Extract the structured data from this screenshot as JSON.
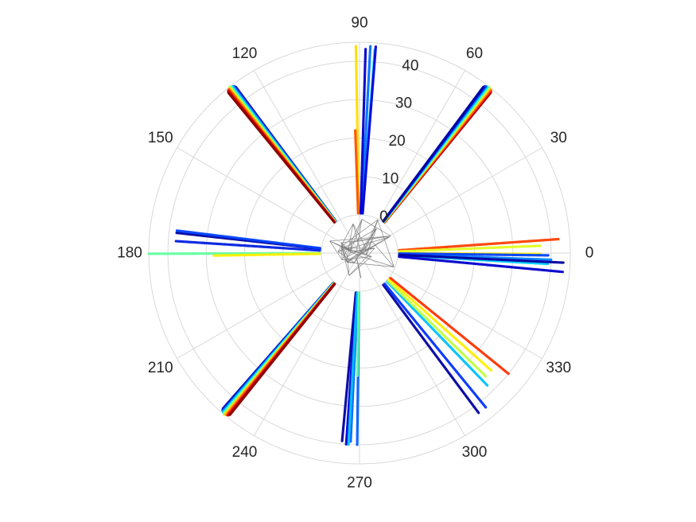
{
  "chart_data": {
    "type": "polar-scatter",
    "title": "",
    "theta_unit": "degrees",
    "theta_ticks": [
      "0",
      "30",
      "60",
      "90",
      "120",
      "150",
      "180",
      "210",
      "240",
      "270",
      "300",
      "330"
    ],
    "r_ticks": [
      "0",
      "10",
      "20",
      "30",
      "40"
    ],
    "r_lim": [
      -10,
      45
    ],
    "grid": true,
    "colormap": "jet",
    "core_network": {
      "color": "#7a7a7a",
      "r_range": [
        -10,
        0
      ]
    },
    "rays": [
      {
        "theta": 91,
        "r_start": 0,
        "r_end": 44,
        "colors": [
          "#ffdd00"
        ]
      },
      {
        "theta": 87,
        "r_start": 0,
        "r_end": 44,
        "colors": [
          "#00e0ff",
          "#0070ff",
          "#0000cc"
        ]
      },
      {
        "theta": 85.5,
        "r_start": 0,
        "r_end": 44,
        "colors": [
          "#0000dd"
        ]
      },
      {
        "theta": 92,
        "r_start": 0,
        "r_end": 22,
        "colors": [
          "#ff5000"
        ]
      },
      {
        "theta": 52,
        "r_start": 0,
        "r_end": 45,
        "colors": [
          "#8b0000",
          "#cc0000",
          "#ff2000",
          "#ff6000",
          "#ffa000",
          "#ffe000",
          "#c0ff40",
          "#60ffa0",
          "#00ffff",
          "#00b0ff",
          "#0060ff",
          "#0020e0",
          "#0000a0"
        ]
      },
      {
        "theta": 128,
        "r_start": 0,
        "r_end": 45,
        "colors": [
          "#0000a0",
          "#0020e0",
          "#0060ff",
          "#00b0ff",
          "#00ffff",
          "#60ffa0",
          "#c0ff40",
          "#ffe000",
          "#ffa000",
          "#ff6000",
          "#ff2000",
          "#cc0000",
          "#8b0000"
        ]
      },
      {
        "theta": 230,
        "r_start": 0,
        "r_end": 45,
        "colors": [
          "#0000a0",
          "#0020e0",
          "#0060ff",
          "#00b0ff",
          "#00ffff",
          "#60ffa0",
          "#c0ff40",
          "#ffe000",
          "#ffa000",
          "#ff6000",
          "#ff2000",
          "#cc0000",
          "#8b0000"
        ]
      },
      {
        "theta": 4,
        "r_start": 0,
        "r_end": 42,
        "colors": [
          "#ff4000"
        ]
      },
      {
        "theta": 1,
        "r_start": 0,
        "r_end": 38,
        "colors": [
          "#ffee00",
          "#e0ff20"
        ]
      },
      {
        "theta": -2,
        "r_start": 0,
        "r_end": 40,
        "colors": [
          "#00d0ff",
          "#0080ff",
          "#0040ff"
        ]
      },
      {
        "theta": -4,
        "r_start": 0,
        "r_end": 44,
        "colors": [
          "#0000cc",
          "#0000a0"
        ]
      },
      {
        "theta": 175,
        "r_start": 0,
        "r_end": 39,
        "colors": [
          "#0000a0",
          "#0020e0"
        ]
      },
      {
        "theta": 173,
        "r_start": 0,
        "r_end": 38,
        "colors": [
          "#0040ff"
        ]
      },
      {
        "theta": 180.2,
        "r_start": 0,
        "r_end": 45,
        "colors": [
          "#60ffa0"
        ]
      },
      {
        "theta": 181,
        "r_start": 0,
        "r_end": 28,
        "colors": [
          "#ffee00"
        ]
      },
      {
        "theta": 266,
        "r_start": 0,
        "r_end": 40,
        "colors": [
          "#0000a0",
          "#0000dd",
          "#0060ff"
        ]
      },
      {
        "theta": 268,
        "r_start": 0,
        "r_end": 41,
        "colors": [
          "#00c0ff",
          "#0060ff"
        ]
      },
      {
        "theta": 269,
        "r_start": 0,
        "r_end": 22,
        "colors": [
          "#60ffa0"
        ]
      },
      {
        "theta": 308,
        "r_start": 0,
        "r_end": 43,
        "colors": [
          "#0000a0",
          "#0030ff"
        ]
      },
      {
        "theta": 314,
        "r_start": 0,
        "r_end": 38,
        "colors": [
          "#00c0ff"
        ]
      },
      {
        "theta": 317,
        "r_start": 0,
        "r_end": 37,
        "colors": [
          "#c0ff40",
          "#ffee00"
        ]
      },
      {
        "theta": 321,
        "r_start": 0,
        "r_end": 40,
        "colors": [
          "#ff3000"
        ]
      }
    ]
  }
}
